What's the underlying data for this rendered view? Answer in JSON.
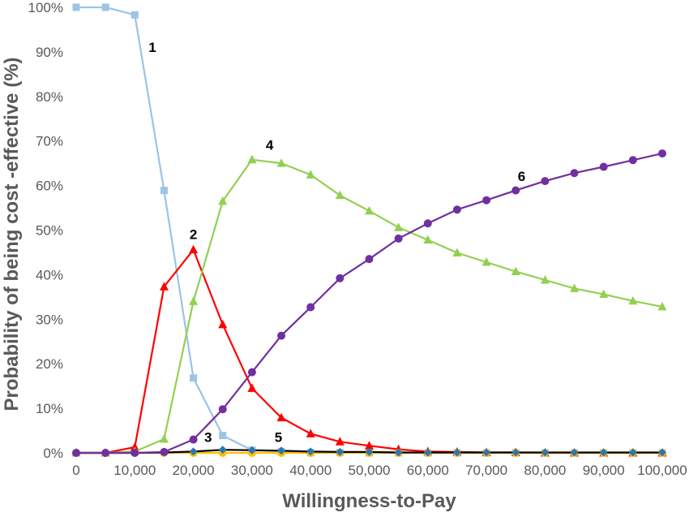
{
  "chart_data": {
    "type": "line",
    "xlabel": "Willingness-to-Pay",
    "ylabel": "Probability of being cost -effective (%)",
    "xlim": [
      0,
      100000
    ],
    "ylim": [
      0,
      100
    ],
    "x_ticks": [
      0,
      10000,
      20000,
      30000,
      40000,
      50000,
      60000,
      70000,
      80000,
      90000,
      100000
    ],
    "x_tick_labels": [
      "0",
      "10,000",
      "20,000",
      "30,000",
      "40,000",
      "50,000",
      "60,000",
      "70,000",
      "80,000",
      "90,000",
      "100,000"
    ],
    "y_ticks": [
      0,
      10,
      20,
      30,
      40,
      50,
      60,
      70,
      80,
      90,
      100
    ],
    "y_tick_labels": [
      "0%",
      "10%",
      "20%",
      "30%",
      "40%",
      "50%",
      "60%",
      "70%",
      "80%",
      "90%",
      "100%"
    ],
    "grid": false,
    "legend": "none",
    "x": [
      0,
      5000,
      10000,
      15000,
      20000,
      25000,
      30000,
      35000,
      40000,
      45000,
      50000,
      55000,
      60000,
      65000,
      70000,
      75000,
      80000,
      85000,
      90000,
      95000,
      100000
    ],
    "series": [
      {
        "label": "1",
        "color": "#9dc3e6",
        "marker": "square",
        "values": [
          100,
          100,
          98.3,
          58.9,
          16.8,
          3.9,
          0.6,
          0.3,
          0.1,
          0.1,
          0,
          0,
          0,
          0,
          0,
          0,
          0,
          0,
          0,
          0,
          0
        ]
      },
      {
        "label": "2",
        "color": "#ff0000",
        "marker": "triangle",
        "values": [
          0,
          0,
          1.3,
          37.3,
          45.6,
          28.8,
          14.5,
          7.9,
          4.3,
          2.5,
          1.6,
          0.8,
          0.3,
          0.2,
          0.1,
          0.1,
          0,
          0,
          0,
          0,
          0
        ]
      },
      {
        "label": "3",
        "color": "#ffc000",
        "marker": "circle",
        "values": [
          0,
          0,
          0,
          0,
          0,
          0,
          0,
          0,
          0,
          0,
          0,
          0,
          0,
          0,
          0,
          0,
          0,
          0,
          0,
          0,
          0
        ]
      },
      {
        "label": "4",
        "color": "#92d050",
        "marker": "triangle",
        "values": [
          0,
          0,
          0.3,
          3.1,
          34,
          56.5,
          65.8,
          65,
          62.4,
          57.8,
          54.3,
          50.6,
          47.8,
          44.9,
          42.8,
          40.7,
          38.8,
          36.9,
          35.6,
          34.1,
          32.8
        ]
      },
      {
        "label": "5",
        "color": "#000000",
        "marker": "diamond",
        "marker_color": "#2e75b6",
        "values": [
          0,
          0,
          0,
          0.1,
          0.3,
          0.7,
          0.6,
          0.5,
          0.3,
          0.2,
          0.2,
          0.1,
          0.1,
          0.1,
          0.1,
          0.1,
          0.1,
          0.1,
          0.1,
          0.1,
          0.1
        ]
      },
      {
        "label": "6",
        "color": "#7030a0",
        "marker": "circle",
        "values": [
          0,
          0,
          0,
          0.2,
          3,
          9.8,
          18.1,
          26.3,
          32.7,
          39.2,
          43.5,
          48.1,
          51.5,
          54.6,
          56.7,
          58.9,
          61,
          62.8,
          64.2,
          65.7,
          67.2
        ]
      }
    ],
    "annotations": [
      {
        "text": "1",
        "series": "1",
        "x": 13000,
        "y": 90
      },
      {
        "text": "2",
        "series": "2",
        "x": 20000,
        "y": 48
      },
      {
        "text": "3",
        "series": "3",
        "x": 22500,
        "y": 2.5
      },
      {
        "text": "4",
        "series": "4",
        "x": 33000,
        "y": 68
      },
      {
        "text": "5",
        "series": "5",
        "x": 34500,
        "y": 2.5
      },
      {
        "text": "6",
        "series": "6",
        "x": 76000,
        "y": 61
      }
    ]
  }
}
